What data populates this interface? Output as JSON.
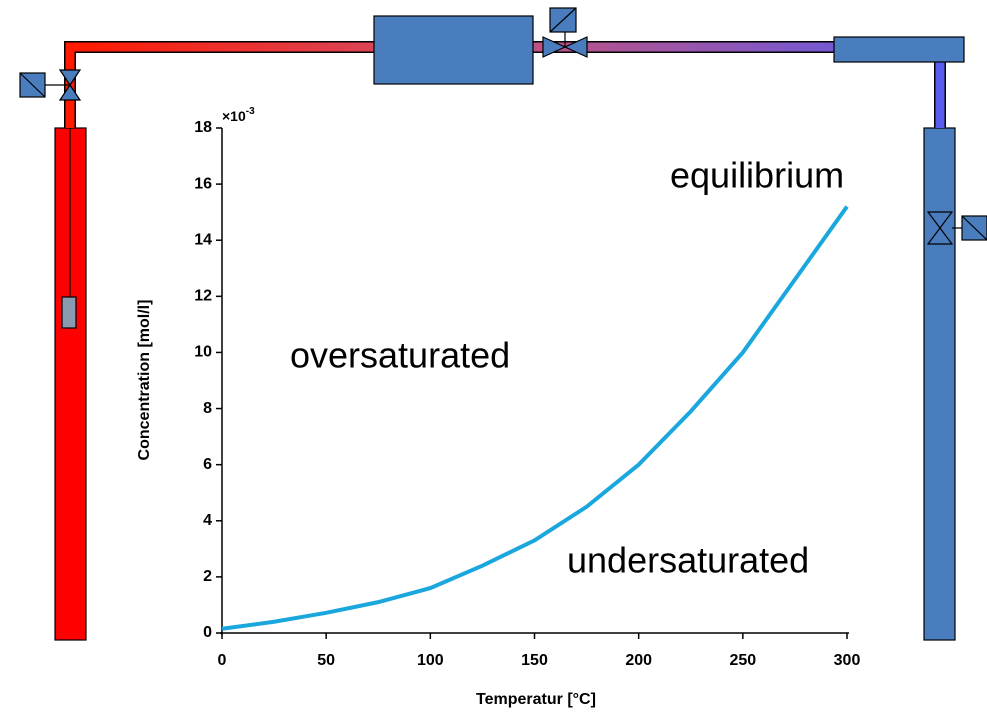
{
  "chart_data": {
    "type": "line",
    "xlabel": "Temperatur [°C]",
    "ylabel": "Concentration [mol/l]",
    "y_multiplier": {
      "base": "×10",
      "exponent": "-3"
    },
    "annotations": [
      "equilibrium",
      "oversaturated",
      "undersaturated"
    ],
    "x": [
      0,
      25,
      50,
      75,
      100,
      125,
      150,
      175,
      200,
      225,
      250,
      275,
      300
    ],
    "series": [
      {
        "name": "equilibrium",
        "color": "#1aa7dd",
        "values": [
          0.15,
          0.4,
          0.72,
          1.1,
          1.6,
          2.4,
          3.3,
          4.5,
          6.0,
          7.9,
          10.0,
          12.6,
          15.2
        ]
      }
    ],
    "xlim": [
      0,
      300
    ],
    "xticks": [
      0,
      50,
      100,
      150,
      200,
      250,
      300
    ],
    "ylim": [
      0,
      18
    ],
    "yticks": [
      0,
      2,
      4,
      6,
      8,
      10,
      12,
      14,
      16,
      18
    ]
  }
}
